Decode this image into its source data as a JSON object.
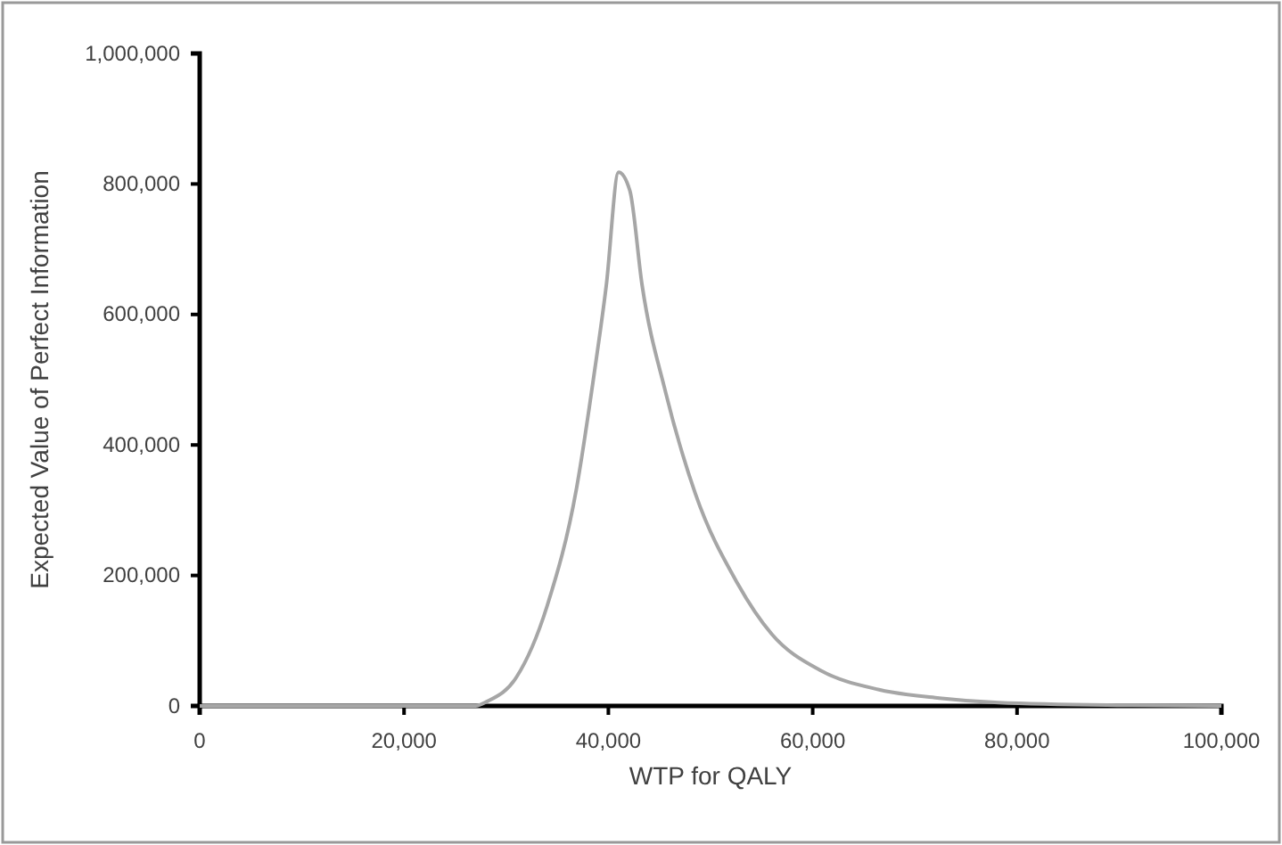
{
  "chart_data": {
    "type": "line",
    "xlabel": "WTP for QALY",
    "ylabel": "Expected Value of Perfect Information",
    "x": [
      0,
      27000,
      28150,
      31000,
      34000,
      36900,
      38600,
      39800,
      41000,
      42100,
      43300,
      45600,
      48500,
      52600,
      56000,
      60700,
      66500,
      72400,
      78200,
      90000,
      100000
    ],
    "series": [
      {
        "color": "#a6a6a6",
        "values": [
          0,
          0,
          7000,
          44000,
          153000,
          335000,
          508000,
          645000,
          818000,
          790000,
          645000,
          481000,
          326000,
          189000,
          110000,
          55000,
          25000,
          12000,
          5000,
          1000,
          0
        ]
      }
    ],
    "xlim": [
      0,
      100000
    ],
    "xticks": [
      0,
      {
        "value": 20000,
        "label": "20,000"
      },
      {
        "value": 40000,
        "label": "40,000"
      },
      {
        "value": 60000,
        "label": "60,000"
      },
      {
        "value": 80000,
        "label": "80,000"
      },
      {
        "value": 100000,
        "label": "100,000"
      }
    ],
    "ylim": [
      0,
      1000000
    ],
    "yticks": [
      0,
      {
        "value": 200000,
        "label": "200,000"
      },
      {
        "value": 400000,
        "label": "400,000"
      },
      {
        "value": 600000,
        "label": "600,000"
      },
      {
        "value": 800000,
        "label": "800,000"
      },
      {
        "value": 1000000,
        "label": "1,000,000"
      }
    ],
    "grid": false,
    "marker": "none",
    "line_style": "solid"
  }
}
